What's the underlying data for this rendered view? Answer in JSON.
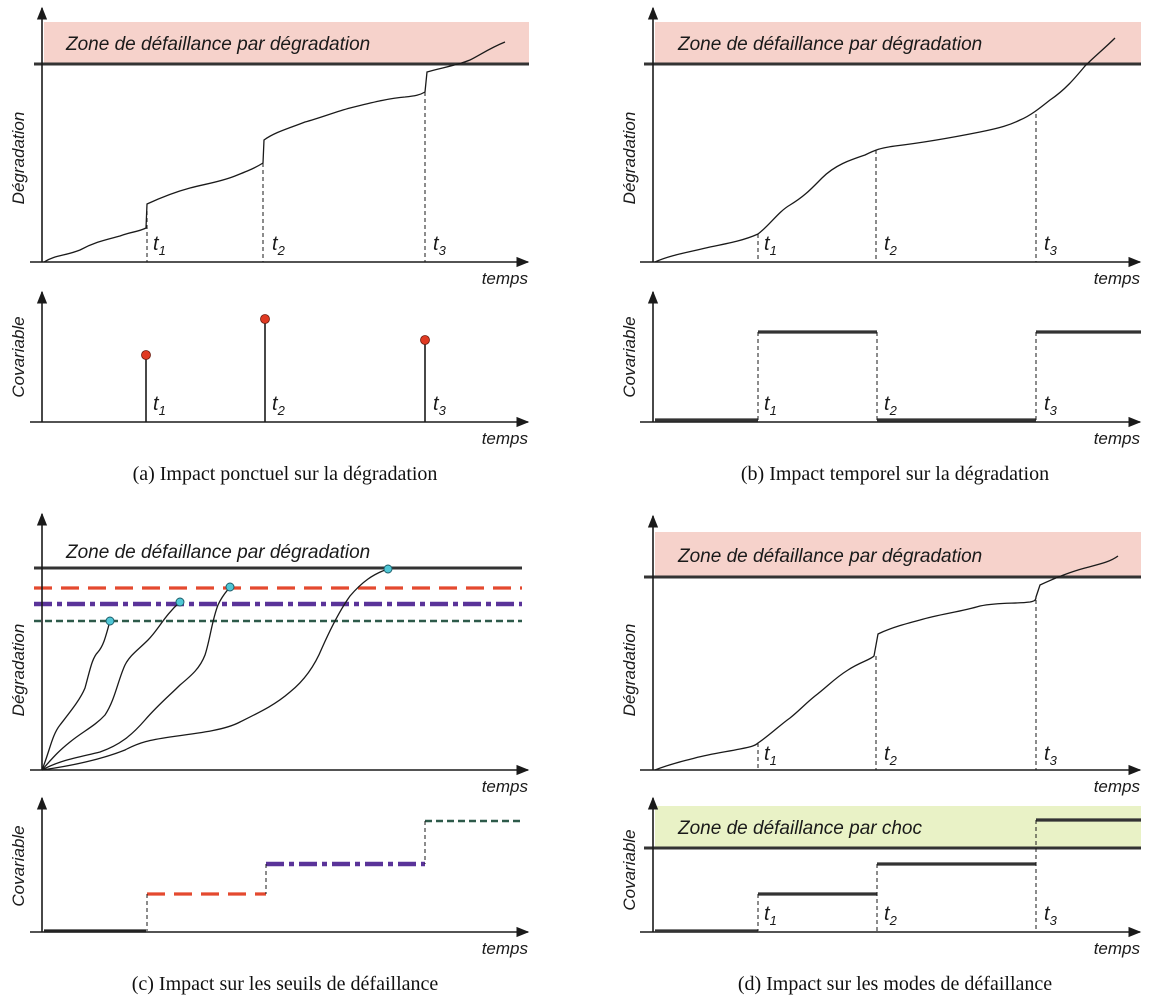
{
  "panels": {
    "a": {
      "caption": "(a) Impact ponctuel sur la dégradation",
      "zone_label": "Zone de défaillance par dégradation",
      "ylabel_top": "Dégradation",
      "ylabel_bottom": "Covariable",
      "xlabel": "temps",
      "t_labels": [
        "t",
        "t",
        "t"
      ],
      "t_subs": [
        "1",
        "2",
        "3"
      ]
    },
    "b": {
      "caption": "(b) Impact temporel sur la dégradation",
      "zone_label": "Zone de défaillance par dégradation",
      "ylabel_top": "Dégradation",
      "ylabel_bottom": "Covariable",
      "xlabel": "temps",
      "t_labels": [
        "t",
        "t",
        "t"
      ],
      "t_subs": [
        "1",
        "2",
        "3"
      ]
    },
    "c": {
      "caption": "(c) Impact sur les seuils de défaillance",
      "zone_label": "Zone de défaillance par dégradation",
      "ylabel_top": "Dégradation",
      "ylabel_bottom": "Covariable",
      "xlabel": "temps"
    },
    "d": {
      "caption": "(d) Impact sur les modes de défaillance",
      "zone_label": "Zone de défaillance par dégradation",
      "shock_zone_label": "Zone de défaillance par choc",
      "ylabel_top": "Dégradation",
      "ylabel_bottom": "Covariable",
      "xlabel": "temps",
      "t_labels": [
        "t",
        "t",
        "t"
      ],
      "t_subs": [
        "1",
        "2",
        "3"
      ]
    }
  },
  "colors": {
    "zone_pink": "#f6d2cb",
    "zone_green": "#e9f2c6",
    "red_dash": "#e4492f",
    "purple_dashdot": "#5a3399",
    "green_dash": "#2d5a4a",
    "marker_red": "#e03a22",
    "marker_cyan": "#4fc7d6"
  }
}
